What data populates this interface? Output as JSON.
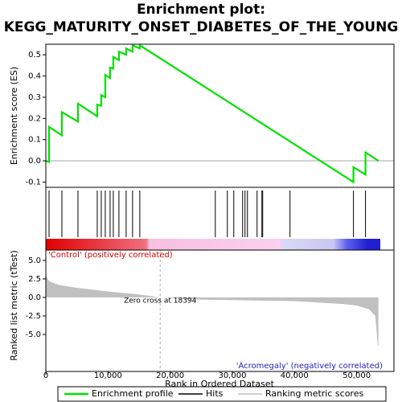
{
  "chart_data": {
    "type": "line",
    "title": "Enrichment plot:",
    "subtitle": "KEGG_MATURITY_ONSET_DIABETES_OF_THE_YOUNG",
    "xlabel": "Rank in Ordered Dataset",
    "xlim": [
      0,
      56000
    ],
    "xticks": [
      0,
      {
        "value": 10000,
        "label": "10,000"
      },
      {
        "value": 20000,
        "label": "20,000"
      },
      {
        "value": 30000,
        "label": "30,000"
      },
      {
        "value": 40000,
        "label": "40,000"
      },
      {
        "value": 50000,
        "label": "50,000"
      }
    ],
    "es": {
      "ylabel": "Enrichment score (ES)",
      "name": "Enrichment profile",
      "color": "#00e000",
      "ylim": [
        -0.125,
        0.55
      ],
      "yticks": [
        -0.1,
        {
          "value": 0,
          "label": "0.0"
        },
        0.1,
        0.2,
        0.3,
        0.4,
        0.5
      ],
      "x": [
        0,
        517,
        517,
        2584,
        2584,
        5168,
        5168,
        8269,
        8269,
        8915,
        8915,
        9561,
        9561,
        10336,
        10336,
        10853,
        10853,
        11757,
        11757,
        12920,
        12920,
        13953,
        13953,
        15116,
        15116,
        49483,
        49483,
        51421,
        51421,
        53500
      ],
      "values": [
        0,
        -0.005,
        0.16,
        0.12,
        0.23,
        0.185,
        0.27,
        0.21,
        0.265,
        0.26,
        0.31,
        0.3,
        0.405,
        0.39,
        0.44,
        0.435,
        0.49,
        0.475,
        0.515,
        0.5,
        0.53,
        0.515,
        0.545,
        0.53,
        0.545,
        -0.1,
        -0.03,
        -0.065,
        0.04,
        0
      ]
    },
    "hits": {
      "name": "Hits",
      "color": "#000000",
      "x": [
        517,
        2584,
        5168,
        8269,
        8915,
        9561,
        10336,
        10853,
        11757,
        12920,
        13953,
        15116,
        27261,
        29199,
        30233,
        31654,
        32041,
        32429,
        33979,
        34755,
        34884,
        39276,
        49483,
        51421
      ]
    },
    "metric": {
      "ylabel": "Ranked list metric (tTest)",
      "name": "Ranking metric scores",
      "color": "#c0c0c0",
      "ylim": [
        -10,
        6.4
      ],
      "yticks": [
        {
          "value": 5,
          "label": "5.0"
        },
        2.5,
        {
          "value": 0,
          "label": "0.0"
        },
        -2.5,
        {
          "value": -5,
          "label": "-5.0"
        }
      ],
      "x": [
        0,
        500,
        2000,
        5000,
        10000,
        15000,
        18394,
        25000,
        40000,
        48000,
        50000,
        52000,
        53000,
        53400,
        53500
      ],
      "values": [
        3.0,
        2.2,
        1.7,
        1.3,
        0.8,
        0.4,
        0,
        -0.3,
        -0.5,
        -0.9,
        -1.1,
        -1.6,
        -2.5,
        -6.5,
        -6.5
      ],
      "zero_cross": 18394,
      "zero_label": "Zero cross at 18394",
      "pos_label": "'Control' (positively correlated)",
      "neg_label": "'Acromegaly' (negatively correlated)"
    }
  }
}
